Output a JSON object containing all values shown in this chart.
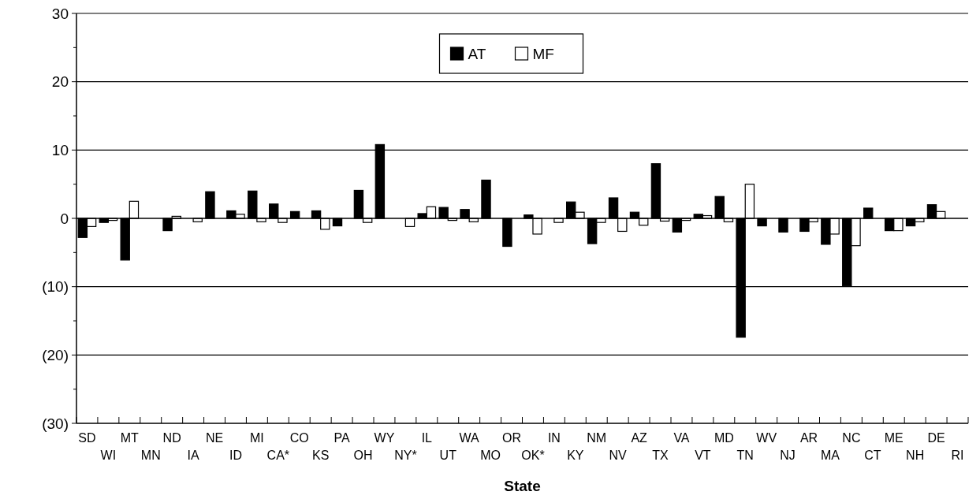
{
  "chart_data": {
    "type": "bar",
    "xlabel": "State",
    "categories": [
      "SD",
      "WI",
      "MT",
      "MN",
      "ND",
      "IA",
      "NE",
      "ID",
      "MI",
      "CA*",
      "CO",
      "KS",
      "PA",
      "OH",
      "WY",
      "NY*",
      "IL",
      "UT",
      "WA",
      "MO",
      "OR",
      "OK*",
      "IN",
      "KY",
      "NM",
      "NV",
      "AZ",
      "TX",
      "VA",
      "VT",
      "MD",
      "TN",
      "WV",
      "NJ",
      "AR",
      "MA",
      "NC",
      "CT",
      "ME",
      "NH",
      "DE",
      "RI"
    ],
    "series": [
      {
        "name": "AT",
        "color": "#000000",
        "values": [
          -2.8,
          -0.6,
          -6.1,
          null,
          -1.8,
          null,
          3.9,
          1.1,
          4.0,
          2.1,
          1.0,
          1.1,
          -1.1,
          4.1,
          10.8,
          null,
          0.7,
          1.6,
          1.3,
          5.6,
          -4.1,
          0.5,
          null,
          2.4,
          -3.7,
          3.0,
          0.9,
          8.0,
          -2.0,
          0.6,
          3.2,
          -17.4,
          -1.1,
          -2.0,
          -1.9,
          -3.8,
          -9.9,
          1.5,
          -1.8,
          -1.1,
          2.0,
          null
        ]
      },
      {
        "name": "MF",
        "color": "#ffffff",
        "values": [
          -1.2,
          -0.3,
          2.5,
          null,
          0.3,
          -0.5,
          null,
          0.6,
          -0.5,
          -0.6,
          null,
          -1.6,
          null,
          -0.6,
          null,
          -1.2,
          1.7,
          -0.3,
          -0.5,
          null,
          null,
          -2.3,
          -0.6,
          0.9,
          -0.6,
          -1.9,
          -1.0,
          -0.4,
          -0.3,
          0.4,
          -0.5,
          5.0,
          null,
          null,
          -0.5,
          -2.3,
          -4.0,
          null,
          -1.8,
          -0.5,
          1.0,
          null
        ]
      }
    ],
    "ylim": [
      -30,
      30
    ],
    "yticks": [
      {
        "value": -30,
        "label": "(30)"
      },
      {
        "value": -25,
        "label": null
      },
      {
        "value": -20,
        "label": "(20)"
      },
      {
        "value": -15,
        "label": null
      },
      {
        "value": -10,
        "label": "(10)"
      },
      {
        "value": -5,
        "label": null
      },
      0,
      {
        "value": 5,
        "label": null
      },
      10,
      {
        "value": 15,
        "label": null
      },
      20,
      {
        "value": 25,
        "label": null
      },
      30
    ],
    "grid": "y",
    "legend": "top"
  }
}
